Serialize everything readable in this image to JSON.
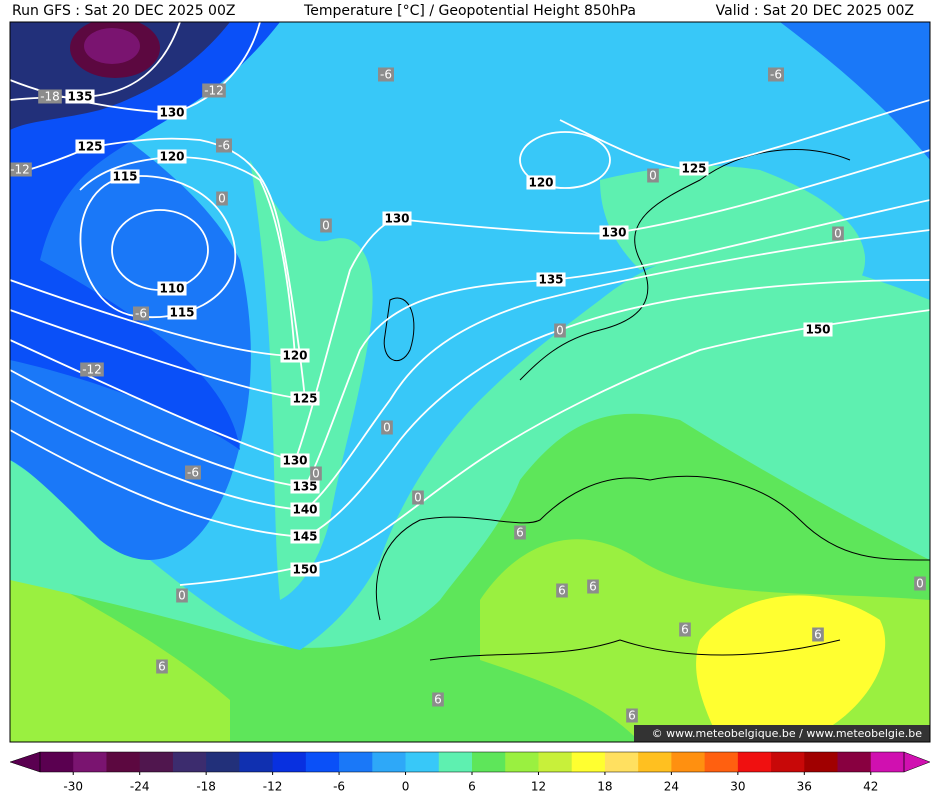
{
  "header": {
    "run": "Run GFS : Sat 20 DEC 2025 00Z",
    "title": "Temperature [°C] / Geopotential Height 850hPa",
    "valid": "Valid : Sat 20 DEC 2025 00Z"
  },
  "contour_labels": {
    "height": [
      "135",
      "130",
      "125",
      "120",
      "115",
      "110",
      "115",
      "120",
      "125",
      "130",
      "135",
      "140",
      "145",
      "150",
      "120",
      "130",
      "130",
      "125",
      "135",
      "150"
    ],
    "temperature": [
      "-18",
      "-12",
      "-6",
      "-6",
      "-12",
      "0",
      "0",
      "-6",
      "-12",
      "-6",
      "0",
      "0",
      "0",
      "0",
      "6",
      "6",
      "6",
      "6",
      "6",
      "6",
      "6",
      "6",
      "0",
      "0",
      "-6",
      "0",
      "0"
    ]
  },
  "watermark": "© www.meteobelgique.be / www.meteobelgie.be",
  "colorbar": {
    "lim": [
      -33,
      45
    ],
    "ticks": [
      -30,
      -24,
      -18,
      -12,
      -6,
      0,
      6,
      12,
      18,
      24,
      30,
      36,
      42
    ],
    "colors": [
      "#5a0050",
      "#7a1470",
      "#5c0840",
      "#50164e",
      "#3c2c6e",
      "#22307a",
      "#1030b0",
      "#0830e0",
      "#0a50f8",
      "#1a78f8",
      "#2ea8f8",
      "#38c8f8",
      "#5ef0b0",
      "#5ee65a",
      "#9af040",
      "#c8f03a",
      "#ffff30",
      "#ffe060",
      "#ffc020",
      "#ff9010",
      "#ff6010",
      "#f01010",
      "#c80808",
      "#a00000",
      "#880040",
      "#d010b0"
    ]
  }
}
